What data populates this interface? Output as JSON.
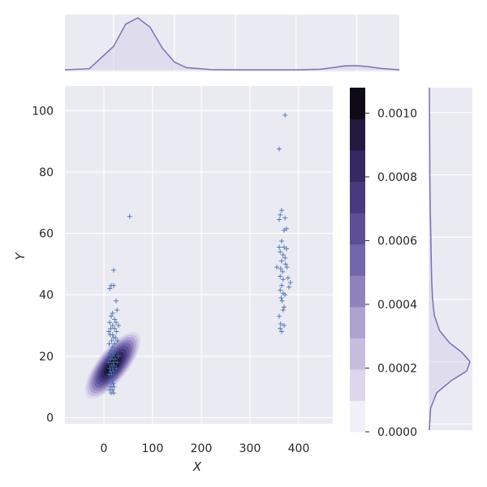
{
  "chart_data": {
    "type": "scatter",
    "overlay": "kde-contour",
    "xlabel": "X",
    "ylabel": "Y",
    "xlim": [
      -80,
      470
    ],
    "ylim": [
      -2,
      108
    ],
    "x_ticks": [
      0,
      100,
      200,
      300,
      400
    ],
    "y_ticks": [
      0,
      20,
      40,
      60,
      80,
      100
    ],
    "grid": true,
    "marker": "+",
    "colors": {
      "background": "#eaeaf2",
      "grid": "#ffffff",
      "points": "#4c72b0",
      "kde_line": "#7a70b5",
      "kde_fill": "#d7d3ea"
    },
    "points": [
      {
        "x": 20,
        "y": 48
      },
      {
        "x": 15,
        "y": 43
      },
      {
        "x": 20,
        "y": 43
      },
      {
        "x": 12,
        "y": 42
      },
      {
        "x": 25,
        "y": 38
      },
      {
        "x": 27,
        "y": 35
      },
      {
        "x": 18,
        "y": 34
      },
      {
        "x": 15,
        "y": 33
      },
      {
        "x": 22,
        "y": 32
      },
      {
        "x": 12,
        "y": 31
      },
      {
        "x": 25,
        "y": 31
      },
      {
        "x": 18,
        "y": 30
      },
      {
        "x": 30,
        "y": 30
      },
      {
        "x": 14,
        "y": 29
      },
      {
        "x": 22,
        "y": 29
      },
      {
        "x": 10,
        "y": 28
      },
      {
        "x": 26,
        "y": 28
      },
      {
        "x": 18,
        "y": 27
      },
      {
        "x": 13,
        "y": 27
      },
      {
        "x": 24,
        "y": 26
      },
      {
        "x": 20,
        "y": 26
      },
      {
        "x": 16,
        "y": 25
      },
      {
        "x": 28,
        "y": 25
      },
      {
        "x": 11,
        "y": 24
      },
      {
        "x": 22,
        "y": 24
      },
      {
        "x": 18,
        "y": 23
      },
      {
        "x": 15,
        "y": 22
      },
      {
        "x": 25,
        "y": 22
      },
      {
        "x": 12,
        "y": 21
      },
      {
        "x": 20,
        "y": 21
      },
      {
        "x": 30,
        "y": 20
      },
      {
        "x": 17,
        "y": 20
      },
      {
        "x": 14,
        "y": 19
      },
      {
        "x": 23,
        "y": 19
      },
      {
        "x": 10,
        "y": 18
      },
      {
        "x": 19,
        "y": 18
      },
      {
        "x": 27,
        "y": 18
      },
      {
        "x": 15,
        "y": 17
      },
      {
        "x": 21,
        "y": 17
      },
      {
        "x": 12,
        "y": 16
      },
      {
        "x": 18,
        "y": 16
      },
      {
        "x": 25,
        "y": 16
      },
      {
        "x": 14,
        "y": 15
      },
      {
        "x": 20,
        "y": 15
      },
      {
        "x": 16,
        "y": 14
      },
      {
        "x": 11,
        "y": 14
      },
      {
        "x": 22,
        "y": 13
      },
      {
        "x": 17,
        "y": 12
      },
      {
        "x": 13,
        "y": 12
      },
      {
        "x": 19,
        "y": 11
      },
      {
        "x": 15,
        "y": 10
      },
      {
        "x": 21,
        "y": 10
      },
      {
        "x": 12,
        "y": 9
      },
      {
        "x": 18,
        "y": 9
      },
      {
        "x": 15,
        "y": 8
      },
      {
        "x": 20,
        "y": 8
      },
      {
        "x": 53,
        "y": 65.5
      },
      {
        "x": 372,
        "y": 98.5
      },
      {
        "x": 360,
        "y": 87.5
      },
      {
        "x": 365,
        "y": 67.5
      },
      {
        "x": 362,
        "y": 66
      },
      {
        "x": 372,
        "y": 65
      },
      {
        "x": 360,
        "y": 64.5
      },
      {
        "x": 375,
        "y": 61.5
      },
      {
        "x": 370,
        "y": 61
      },
      {
        "x": 365,
        "y": 57.5
      },
      {
        "x": 360,
        "y": 55.5
      },
      {
        "x": 370,
        "y": 55.5
      },
      {
        "x": 375,
        "y": 55
      },
      {
        "x": 362,
        "y": 54
      },
      {
        "x": 368,
        "y": 53
      },
      {
        "x": 372,
        "y": 52
      },
      {
        "x": 365,
        "y": 51
      },
      {
        "x": 373,
        "y": 50
      },
      {
        "x": 355,
        "y": 49
      },
      {
        "x": 363,
        "y": 48.5
      },
      {
        "x": 376,
        "y": 49
      },
      {
        "x": 367,
        "y": 47.5
      },
      {
        "x": 362,
        "y": 46
      },
      {
        "x": 378,
        "y": 45.5
      },
      {
        "x": 368,
        "y": 45
      },
      {
        "x": 383,
        "y": 44
      },
      {
        "x": 365,
        "y": 43
      },
      {
        "x": 380,
        "y": 42.5
      },
      {
        "x": 362,
        "y": 41.5
      },
      {
        "x": 368,
        "y": 40.5
      },
      {
        "x": 372,
        "y": 40
      },
      {
        "x": 364,
        "y": 39
      },
      {
        "x": 366,
        "y": 38
      },
      {
        "x": 370,
        "y": 36
      },
      {
        "x": 368,
        "y": 35
      },
      {
        "x": 360,
        "y": 33
      },
      {
        "x": 363,
        "y": 30.5
      },
      {
        "x": 370,
        "y": 30
      },
      {
        "x": 362,
        "y": 29
      },
      {
        "x": 365,
        "y": 28
      }
    ],
    "kde_levels": 10,
    "kde_center": [
      18,
      17
    ],
    "marginal_x": {
      "type": "kde",
      "x": [
        -80,
        -40,
        0,
        20,
        40,
        60,
        80,
        100,
        120,
        160,
        200,
        250,
        300,
        340,
        360,
        380,
        400,
        420,
        440,
        470
      ],
      "density": [
        0.0,
        0.02,
        0.45,
        0.88,
        1.0,
        0.82,
        0.42,
        0.15,
        0.04,
        0.005,
        0.0,
        0.0,
        0.0,
        0.01,
        0.04,
        0.075,
        0.08,
        0.06,
        0.025,
        0.0
      ]
    },
    "marginal_y": {
      "type": "kde",
      "y": [
        -2,
        5,
        10,
        14,
        17,
        20,
        23,
        26,
        30,
        35,
        40,
        45,
        50,
        60,
        70,
        80,
        90,
        100,
        108
      ],
      "density": [
        0.0,
        0.03,
        0.18,
        0.55,
        0.92,
        1.0,
        0.8,
        0.5,
        0.25,
        0.12,
        0.08,
        0.06,
        0.05,
        0.035,
        0.02,
        0.012,
        0.008,
        0.004,
        0.0
      ]
    },
    "colorbar": {
      "ticks": [
        "0.0000",
        "0.0002",
        "0.0004",
        "0.0006",
        "0.0008",
        "0.0010"
      ],
      "tick_values": [
        0,
        0.0002,
        0.0004,
        0.0006,
        0.0008,
        0.001
      ],
      "range": [
        0,
        0.00108
      ],
      "bands": [
        "#f1f0f8",
        "#dcd7ec",
        "#c5bede",
        "#aca2cf",
        "#8e83bd",
        "#7367ab",
        "#5c4f96",
        "#483a7e",
        "#352963",
        "#221a3f",
        "#0e0a18"
      ]
    }
  }
}
